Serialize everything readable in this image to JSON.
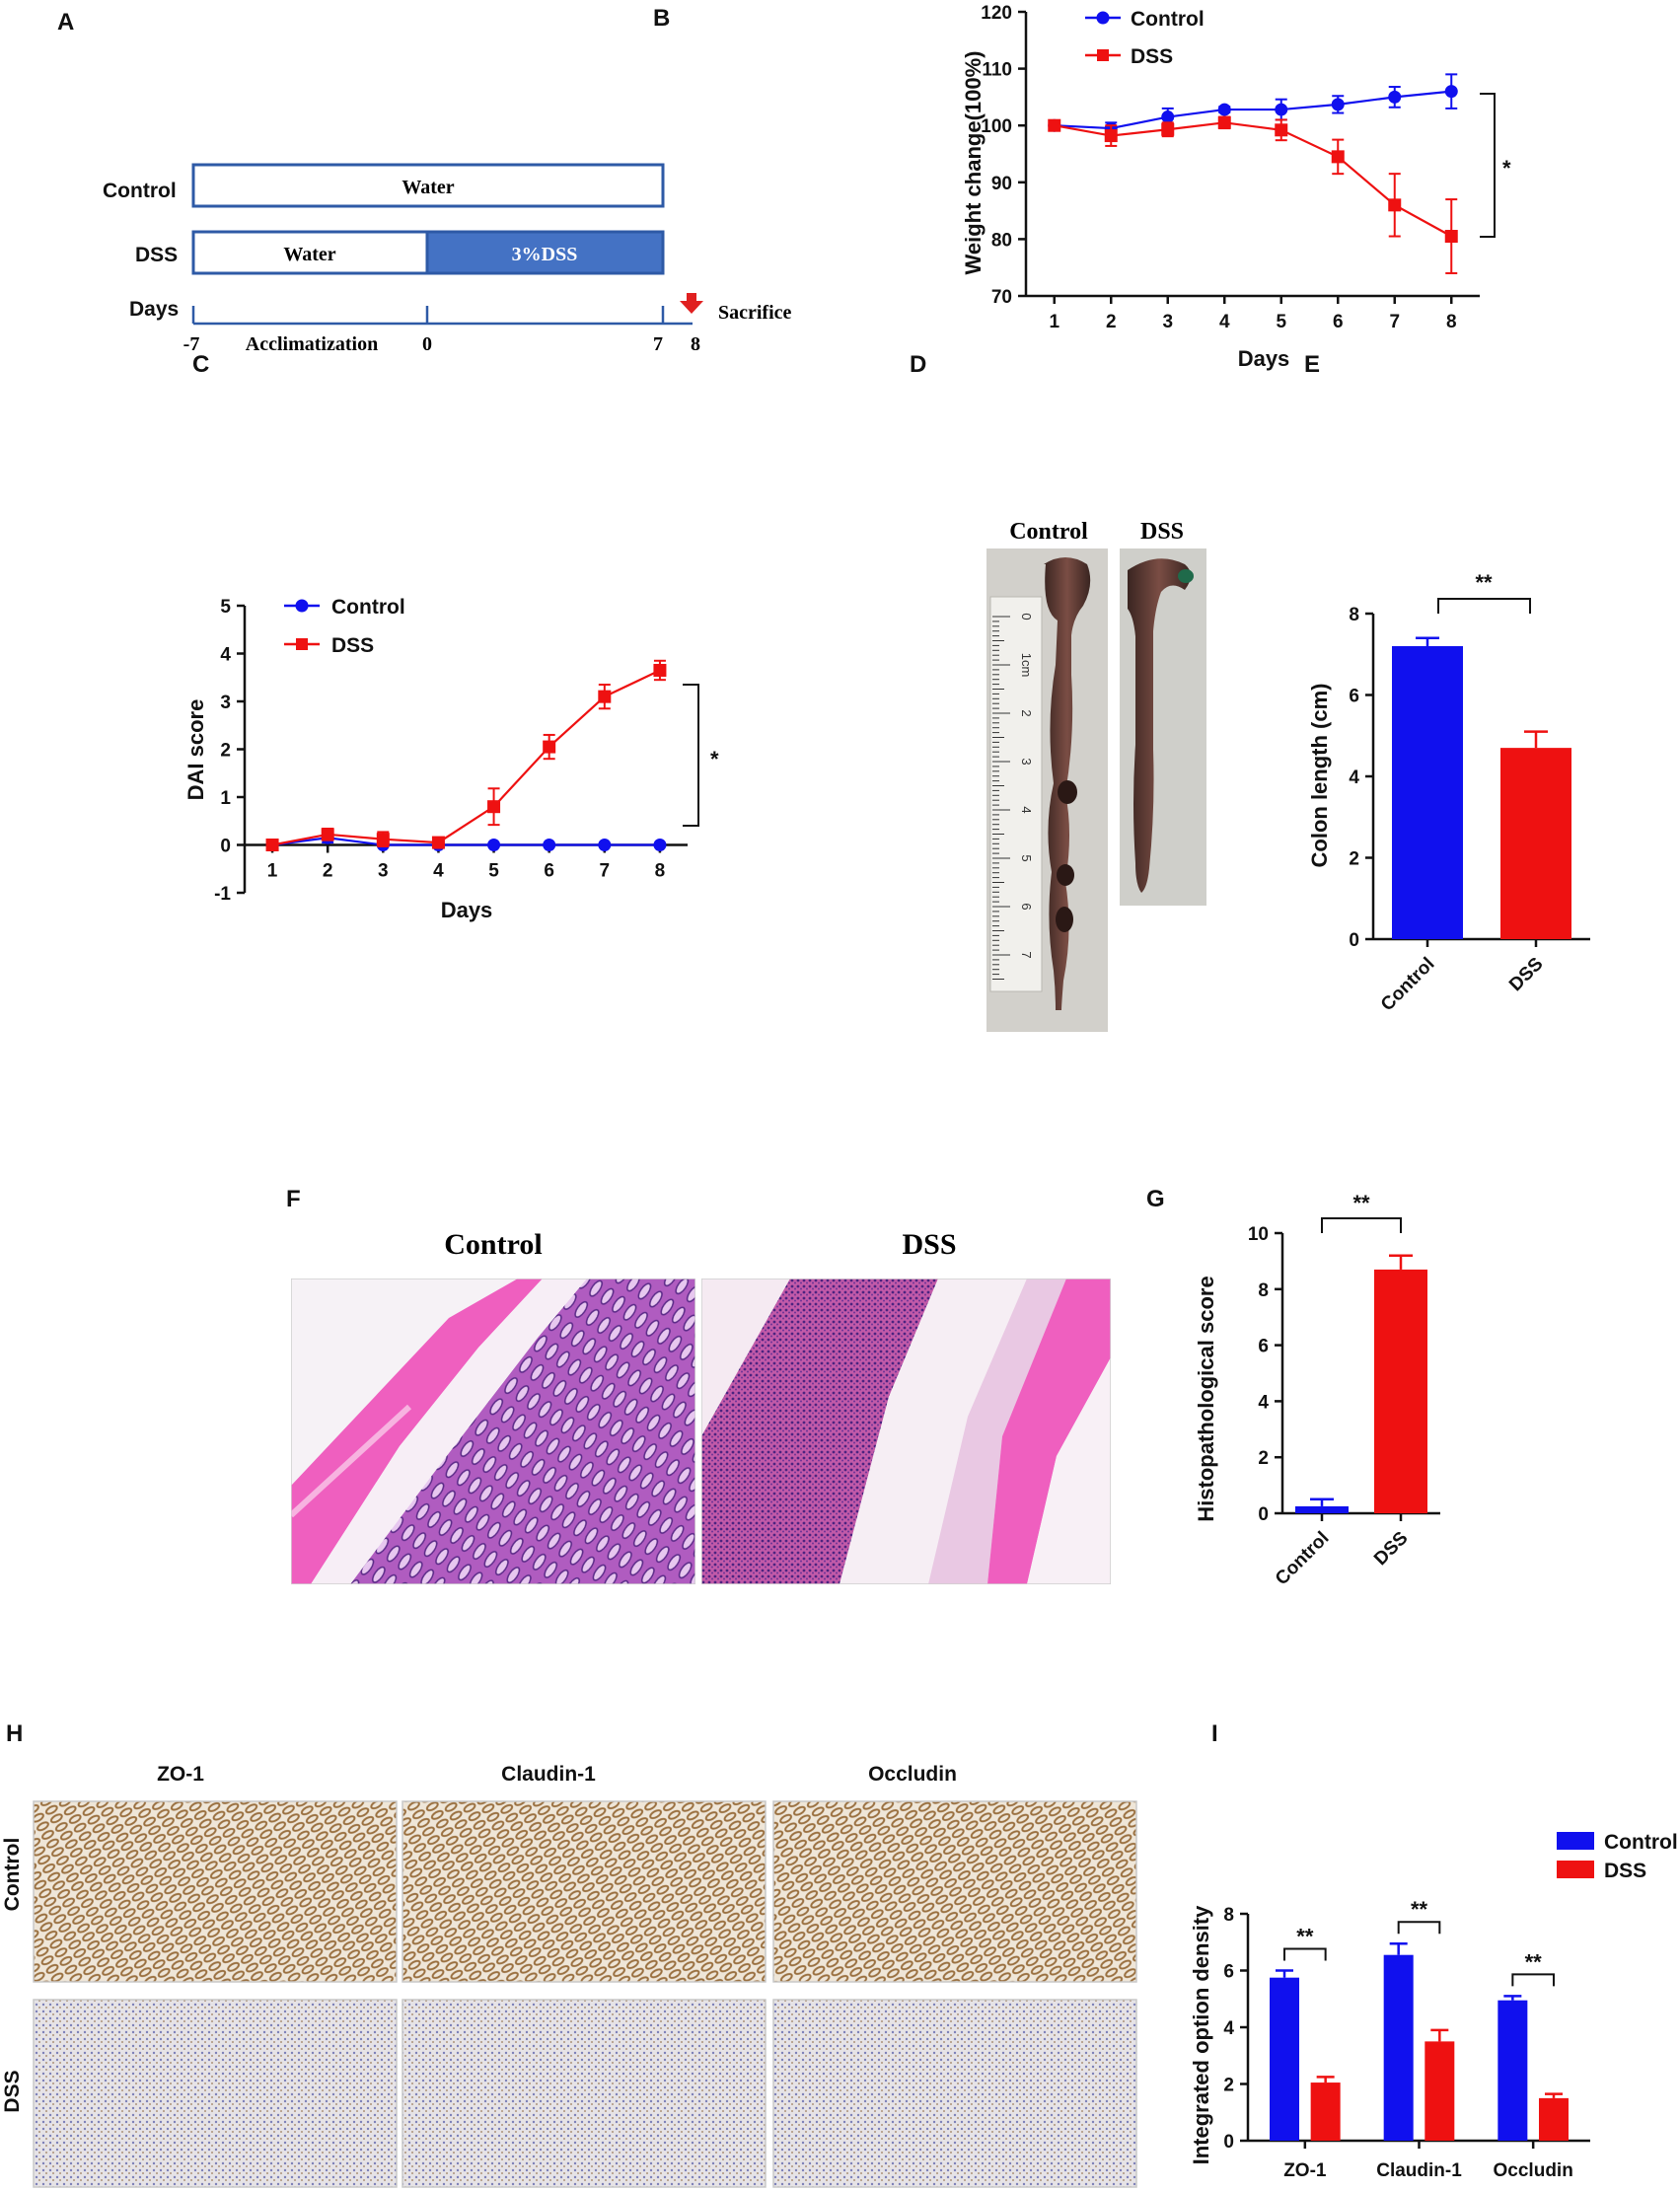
{
  "panels": {
    "A": "A",
    "B": "B",
    "C": "C",
    "D": "D",
    "E": "E",
    "F": "F",
    "G": "G",
    "H": "H",
    "I": "I"
  },
  "schematic": {
    "control_row_label": "Control",
    "dss_row_label": "DSS",
    "days_row_label": "Days",
    "control_bar_text": "Water",
    "dss_water_text": "Water",
    "dss_treatment_text": "3%DSS",
    "acclimatization_text": "Acclimatization",
    "sacrifice_text": "Sacrifice",
    "day_ticks": [
      "-7",
      "0",
      "7",
      "8"
    ],
    "colors": {
      "bar_border": "#2e5aa6",
      "dss_fill": "#4472c4",
      "sacrifice_arrow": "#e02020"
    }
  },
  "photos": {
    "colon_control_label": "Control",
    "colon_dss_label": "DSS",
    "he_control_label": "Control",
    "he_dss_label": "DSS",
    "ihc_column_labels": [
      "ZO-1",
      "Claudin-1",
      "Occludin"
    ],
    "ihc_row_labels": [
      "Control",
      "DSS"
    ],
    "ruler_marks": [
      "0",
      "1cm",
      "2",
      "3",
      "4",
      "5",
      "6",
      "7"
    ]
  },
  "colors": {
    "control": "#1010ee",
    "dss": "#ee1111"
  },
  "chart_data": [
    {
      "panel": "B",
      "type": "line",
      "xlabel": "Days",
      "ylabel": "Weight change(100%)",
      "x": [
        1,
        2,
        3,
        4,
        5,
        6,
        7,
        8
      ],
      "xlim": [
        0.5,
        8.5
      ],
      "ylim": [
        70,
        120
      ],
      "yticks": [
        70,
        80,
        90,
        100,
        110,
        120
      ],
      "series": [
        {
          "name": "Control",
          "values": [
            100,
            99.5,
            101.5,
            102.8,
            102.8,
            103.7,
            105,
            106
          ],
          "errors": [
            0.8,
            1,
            1.5,
            0.5,
            1.8,
            1.5,
            1.8,
            3
          ]
        },
        {
          "name": "DSS",
          "values": [
            100,
            98.2,
            99.3,
            100.5,
            99.2,
            94.5,
            86,
            80.5
          ],
          "errors": [
            0.8,
            1.8,
            1.2,
            1,
            1.8,
            3,
            5.5,
            6.5
          ]
        }
      ],
      "significance": "*"
    },
    {
      "panel": "C",
      "type": "line",
      "xlabel": "Days",
      "ylabel": "DAI score",
      "x": [
        1,
        2,
        3,
        4,
        5,
        6,
        7,
        8
      ],
      "xlim": [
        0.5,
        8.5
      ],
      "ylim": [
        -1,
        5
      ],
      "yticks": [
        -1,
        0,
        1,
        2,
        3,
        4,
        5
      ],
      "series": [
        {
          "name": "Control",
          "values": [
            0,
            0.15,
            0,
            0,
            0,
            0,
            0,
            0
          ],
          "errors": [
            0,
            0.1,
            0,
            0,
            0,
            0,
            0,
            0
          ]
        },
        {
          "name": "DSS",
          "values": [
            0,
            0.22,
            0.12,
            0.05,
            0.8,
            2.05,
            3.1,
            3.65
          ],
          "errors": [
            0,
            0.12,
            0.15,
            0.08,
            0.38,
            0.25,
            0.25,
            0.2
          ]
        }
      ],
      "significance": "*"
    },
    {
      "panel": "E",
      "type": "bar",
      "ylabel": "Colon length (cm)",
      "categories": [
        "Control",
        "DSS"
      ],
      "values": [
        7.2,
        4.7
      ],
      "errors": [
        0.2,
        0.4
      ],
      "ylim": [
        0,
        8
      ],
      "yticks": [
        0,
        2,
        4,
        6,
        8
      ],
      "significance": "**"
    },
    {
      "panel": "G",
      "type": "bar",
      "ylabel": "Histopathological score",
      "categories": [
        "Control",
        "DSS"
      ],
      "values": [
        0.25,
        8.7
      ],
      "errors": [
        0.25,
        0.5
      ],
      "ylim": [
        0,
        10
      ],
      "yticks": [
        0,
        2,
        4,
        6,
        8,
        10
      ],
      "significance": "**"
    },
    {
      "panel": "I",
      "type": "bar",
      "ylabel": "Integrated option density",
      "categories": [
        "ZO-1",
        "Claudin-1",
        "Occludin"
      ],
      "ylim": [
        0,
        8
      ],
      "yticks": [
        0,
        2,
        4,
        6,
        8
      ],
      "series": [
        {
          "name": "Control",
          "values": [
            5.75,
            6.55,
            4.95
          ],
          "errors": [
            0.25,
            0.4,
            0.15
          ]
        },
        {
          "name": "DSS",
          "values": [
            2.05,
            3.5,
            1.5
          ],
          "errors": [
            0.2,
            0.4,
            0.15
          ]
        }
      ],
      "significance": [
        "**",
        "**",
        "**"
      ]
    }
  ]
}
